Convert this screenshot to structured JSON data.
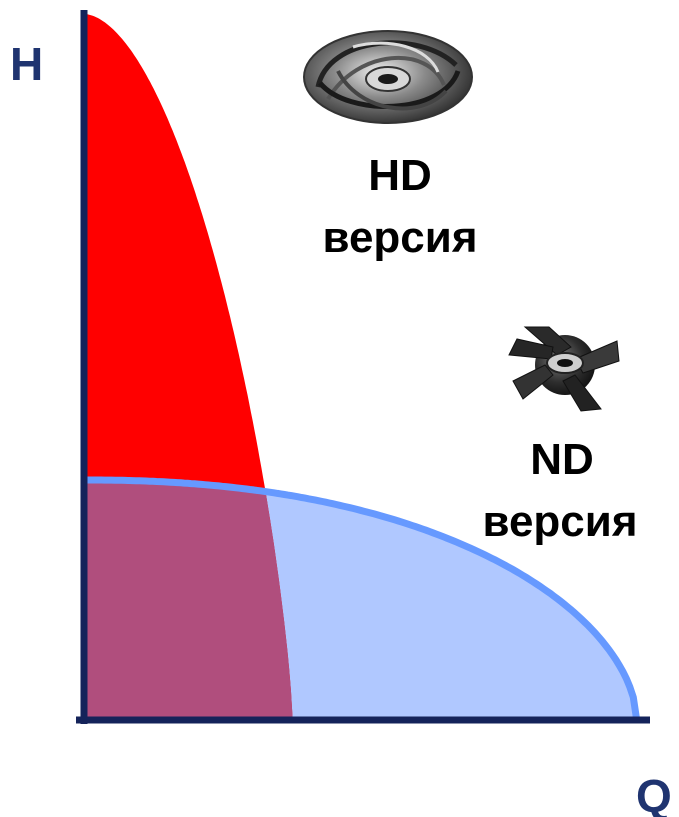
{
  "chart_data": {
    "type": "area",
    "xlabel": "Q",
    "ylabel": "H",
    "xlim": [
      0,
      1
    ],
    "ylim": [
      0,
      1
    ],
    "grid": false,
    "legend": "none",
    "series": [
      {
        "name_lines": [
          "HD",
          "версия"
        ],
        "color": "#ff0000",
        "shutoff_head": 1.0,
        "max_flow": 0.37,
        "shape": "steep"
      },
      {
        "name_lines": [
          "ND",
          "версия"
        ],
        "color": "#6699ff",
        "fill": "#b0c8ff",
        "shutoff_head": 0.34,
        "max_flow": 0.98,
        "shape": "flat"
      }
    ],
    "overlap_color": "#b04e7d",
    "icons": [
      "closed-impeller-icon",
      "open-impeller-icon"
    ]
  },
  "colors": {
    "axis": "#14235a",
    "axis_label": "#1f3470"
  }
}
